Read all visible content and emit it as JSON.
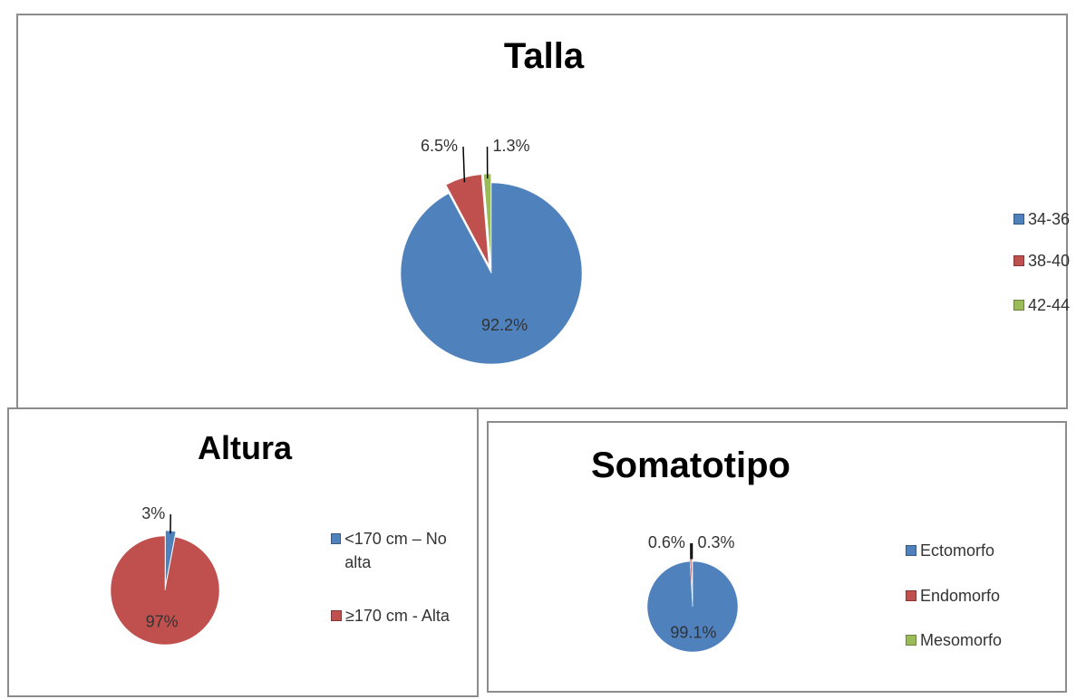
{
  "chart_data": [
    {
      "type": "pie",
      "title": "Talla",
      "categories": [
        "34-36",
        "38-40",
        "42-44"
      ],
      "values": [
        92.2,
        6.5,
        1.3
      ],
      "value_labels": [
        "92.2%",
        "6.5%",
        "1.3%"
      ],
      "colors": [
        "#4f81bd",
        "#c0504d",
        "#9bbb59"
      ],
      "legend": "right"
    },
    {
      "type": "pie",
      "title": "Altura",
      "categories": [
        "<170 cm – No alta",
        "≥170 cm - Alta"
      ],
      "values": [
        3,
        97
      ],
      "value_labels": [
        "3%",
        "97%"
      ],
      "colors": [
        "#4f81bd",
        "#c0504d"
      ],
      "legend": "right"
    },
    {
      "type": "pie",
      "title": "Somatotipo",
      "categories": [
        "Ectomorfo",
        "Endomorfo",
        "Mesomorfo"
      ],
      "values": [
        99.1,
        0.6,
        0.3
      ],
      "value_labels": [
        "99.1%",
        "0.6%",
        "0.3%"
      ],
      "colors": [
        "#4f81bd",
        "#c0504d",
        "#9bbb59"
      ],
      "legend": "right"
    }
  ]
}
